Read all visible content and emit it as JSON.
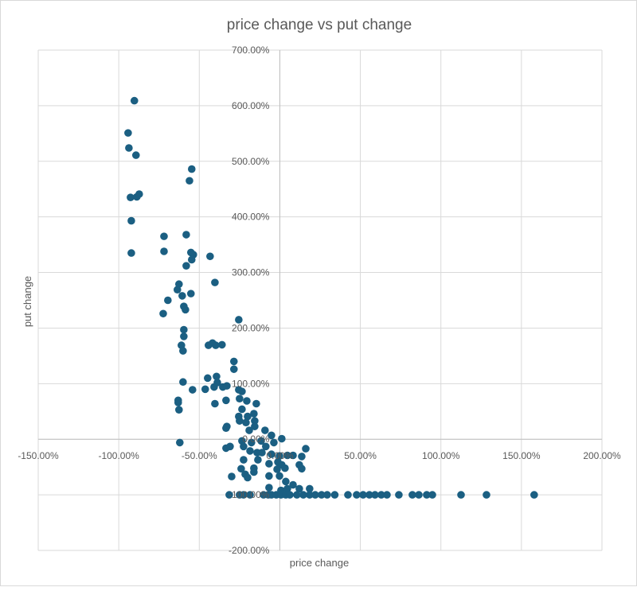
{
  "chart_data": {
    "type": "scatter",
    "title": "price change vs put change",
    "xlabel": "price change",
    "ylabel": "put change",
    "xlim": [
      -150,
      200
    ],
    "ylim": [
      -200,
      700
    ],
    "x_ticks": [
      -150,
      -100,
      -50,
      0,
      50,
      100,
      150,
      200
    ],
    "y_ticks": [
      -200,
      -100,
      0,
      100,
      200,
      300,
      400,
      500,
      600,
      700
    ],
    "x_tick_labels": [
      "-150.00%",
      "-100.00%",
      "-50.00%",
      "0.00%",
      "50.00%",
      "100.00%",
      "150.00%",
      "200.00%"
    ],
    "y_tick_labels": [
      "-200.00%",
      "-100.00%",
      "0.00%",
      "100.00%",
      "200.00%",
      "300.00%",
      "400.00%",
      "500.00%",
      "600.00%",
      "700.00%"
    ],
    "grid": true,
    "legend": "none",
    "marker_color": "#1b5f82",
    "points": [
      [
        -90.3,
        609
      ],
      [
        -94.2,
        551
      ],
      [
        -93.7,
        524
      ],
      [
        -89.3,
        511
      ],
      [
        -54.7,
        486
      ],
      [
        -56.1,
        465
      ],
      [
        -92.7,
        435
      ],
      [
        -88.8,
        436
      ],
      [
        -87.3,
        441
      ],
      [
        -92.2,
        393
      ],
      [
        -92.2,
        335
      ],
      [
        -71.9,
        365
      ],
      [
        -58.1,
        368
      ],
      [
        -71.9,
        338
      ],
      [
        -55.2,
        336
      ],
      [
        -53.7,
        332
      ],
      [
        -54.7,
        323
      ],
      [
        -58.1,
        312
      ],
      [
        -43.3,
        329
      ],
      [
        -40.3,
        282
      ],
      [
        -62.6,
        279
      ],
      [
        -63.6,
        269
      ],
      [
        -69.5,
        250
      ],
      [
        -55.2,
        262
      ],
      [
        -60.6,
        258
      ],
      [
        -59.6,
        239
      ],
      [
        -58.6,
        233
      ],
      [
        -72.4,
        226
      ],
      [
        -25.5,
        215
      ],
      [
        -59.6,
        197
      ],
      [
        -59.6,
        185
      ],
      [
        -61.1,
        169
      ],
      [
        -60.1,
        159
      ],
      [
        -44.3,
        169
      ],
      [
        -41.8,
        173
      ],
      [
        -39.8,
        169
      ],
      [
        -35.9,
        170
      ],
      [
        -28.5,
        140
      ],
      [
        -28.5,
        126
      ],
      [
        -60.1,
        103
      ],
      [
        -44.8,
        110
      ],
      [
        -39.3,
        113
      ],
      [
        -38.8,
        102
      ],
      [
        -40.8,
        94
      ],
      [
        -35.4,
        94
      ],
      [
        -32.9,
        96
      ],
      [
        -54.2,
        89
      ],
      [
        -46.3,
        90
      ],
      [
        -63.1,
        70
      ],
      [
        -63.1,
        66
      ],
      [
        -62.6,
        53
      ],
      [
        -40.3,
        64
      ],
      [
        -33.4,
        70
      ],
      [
        -62.1,
        -6
      ],
      [
        -32.9,
        23
      ],
      [
        -30.9,
        -13
      ],
      [
        -29.9,
        -67
      ],
      [
        -25.5,
        89
      ],
      [
        -23.5,
        86
      ],
      [
        -25.0,
        73
      ],
      [
        -20.5,
        69
      ],
      [
        -14.6,
        64
      ],
      [
        -23.5,
        54
      ],
      [
        -25.5,
        41
      ],
      [
        -20.0,
        41
      ],
      [
        -16.1,
        46
      ],
      [
        -25.0,
        33
      ],
      [
        -21.0,
        30
      ],
      [
        -15.6,
        33
      ],
      [
        -15.6,
        23
      ],
      [
        -19.0,
        16
      ],
      [
        -33.4,
        20
      ],
      [
        -9.2,
        16
      ],
      [
        -5.2,
        7
      ],
      [
        1.2,
        1
      ],
      [
        -23.5,
        -3
      ],
      [
        -17.6,
        -6
      ],
      [
        -11.6,
        -3
      ],
      [
        -3.7,
        -6
      ],
      [
        -8.7,
        -13
      ],
      [
        -33.4,
        -16
      ],
      [
        -22.5,
        -13
      ],
      [
        -18.5,
        -21
      ],
      [
        -14.1,
        -24
      ],
      [
        -11.1,
        -24
      ],
      [
        -5.2,
        -27
      ],
      [
        -0.2,
        -30
      ],
      [
        4.7,
        -29
      ],
      [
        8.2,
        -29
      ],
      [
        16.1,
        -17
      ],
      [
        13.6,
        -31
      ],
      [
        -22.5,
        -37
      ],
      [
        -13.6,
        -37
      ],
      [
        -6.7,
        -44
      ],
      [
        -1.2,
        -41
      ],
      [
        1.2,
        -46
      ],
      [
        -24.0,
        -53
      ],
      [
        -16.1,
        -52
      ],
      [
        -1.7,
        -54
      ],
      [
        3.2,
        -52
      ],
      [
        12.1,
        -46
      ],
      [
        13.6,
        -53
      ],
      [
        -21.5,
        -63
      ],
      [
        -16.1,
        -59
      ],
      [
        -6.7,
        -66
      ],
      [
        -0.2,
        -66
      ],
      [
        -20.0,
        -69
      ],
      [
        3.7,
        -76
      ],
      [
        8.2,
        -82
      ],
      [
        12.1,
        -89
      ],
      [
        18.5,
        -89
      ],
      [
        -6.7,
        -87
      ],
      [
        0.7,
        -92
      ],
      [
        4.7,
        -89
      ],
      [
        -31.4,
        -100
      ],
      [
        -25.0,
        -100
      ],
      [
        -22.5,
        -100
      ],
      [
        -18.5,
        -100
      ],
      [
        -10.1,
        -100
      ],
      [
        -7.2,
        -100
      ],
      [
        -5.2,
        -100
      ],
      [
        -2.2,
        -100
      ],
      [
        0.7,
        -100
      ],
      [
        3.7,
        -100
      ],
      [
        6.2,
        -100
      ],
      [
        10.6,
        -100
      ],
      [
        14.6,
        -100
      ],
      [
        18.5,
        -100
      ],
      [
        22.0,
        -100
      ],
      [
        25.9,
        -100
      ],
      [
        29.4,
        -100
      ],
      [
        34.1,
        -100
      ],
      [
        42.3,
        -100
      ],
      [
        47.7,
        -100
      ],
      [
        51.7,
        -100
      ],
      [
        55.6,
        -100
      ],
      [
        59.1,
        -100
      ],
      [
        63.0,
        -100
      ],
      [
        66.5,
        -100
      ],
      [
        73.9,
        -100
      ],
      [
        82.3,
        -100
      ],
      [
        86.3,
        -100
      ],
      [
        91.2,
        -100
      ],
      [
        94.7,
        -100
      ],
      [
        112.5,
        -100
      ],
      [
        128.3,
        -100
      ],
      [
        157.9,
        -100
      ]
    ]
  }
}
